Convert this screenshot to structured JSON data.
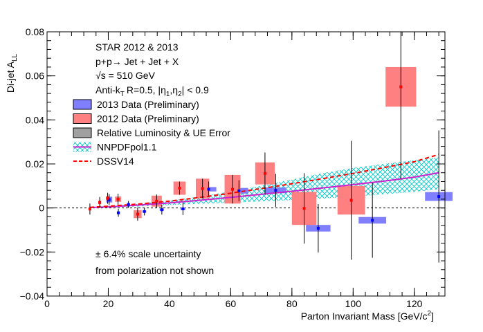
{
  "chart_data": {
    "type": "scatter",
    "xlabel": "Parton Invariant Mass [GeV/c",
    "xlabel_sup": "2",
    "xlabel_close": "]",
    "ylabel_main": "Di-jet A",
    "ylabel_sub": "LL",
    "xlim": [
      0,
      130
    ],
    "ylim": [
      -0.04,
      0.08
    ],
    "x_ticks": [
      0,
      20,
      40,
      60,
      80,
      100,
      120
    ],
    "x_tick_labels": [
      "0",
      "20",
      "40",
      "60",
      "80",
      "100",
      "120"
    ],
    "y_ticks": [
      -0.04,
      -0.02,
      0,
      0.02,
      0.04,
      0.06,
      0.08
    ],
    "y_tick_labels": [
      "−0.04",
      "−0.02",
      "0",
      "0.02",
      "0.04",
      "0.06",
      "0.08"
    ],
    "annotations": {
      "line1": "STAR 2012 & 2013",
      "line2": "p+p→ Jet + Jet + X",
      "line3_sqrt": "√",
      "line3": "s = 510 GeV",
      "line4_a": "Anti-k",
      "line4_sub": "T",
      "line4_b": "R=0.5, |η",
      "line4_sub1": "1",
      "line4_c": ",η",
      "line4_sub2": "2",
      "line4_d": "| < 0.9",
      "scale_note_1": "± 6.4% scale uncertainty",
      "scale_note_2": "from polarization not shown"
    },
    "legend": [
      {
        "key": "d2013",
        "label": "2013 Data (Preliminary)",
        "color": "#7f7fff"
      },
      {
        "key": "d2012",
        "label": "2012 Data (Preliminary)",
        "color": "#ff8080"
      },
      {
        "key": "lumi",
        "label": "Relative Luminosity & UE Error",
        "color": "#a0a0a0"
      },
      {
        "key": "nnpdf",
        "label": "NNPDFpol1.1",
        "color": "#00cccc"
      },
      {
        "key": "dssv",
        "label": "DSSV14",
        "color": "#ff0000"
      }
    ],
    "series": [
      {
        "name": "2013 Data (Preliminary)",
        "color": "#7f7fff",
        "marker": "#0000ff",
        "points": [
          {
            "x": 20.3,
            "y": 0.0038,
            "err": 0.0025,
            "sys": 0.0013,
            "hw": 1.0
          },
          {
            "x": 23.3,
            "y": -0.0022,
            "err": 0.0018,
            "sys": 0.0006,
            "hw": 0.5
          },
          {
            "x": 26.6,
            "y": 0.0016,
            "err": 0.0016,
            "sys": 0.0004,
            "hw": 0.5
          },
          {
            "x": 31.8,
            "y": -0.0016,
            "err": 0.0018,
            "sys": 0.0004,
            "hw": 0.6
          },
          {
            "x": 37.5,
            "y": -0.0008,
            "err": 0.0022,
            "sys": 0.0005,
            "hw": 0.7
          },
          {
            "x": 44.4,
            "y": -0.0004,
            "err": 0.0028,
            "sys": 0.0006,
            "hw": 0.8
          },
          {
            "x": 52.8,
            "y": 0.0085,
            "err": 0.0035,
            "sys": 0.001,
            "hw": 2.5
          },
          {
            "x": 62.7,
            "y": 0.0078,
            "err": 0.0048,
            "sys": 0.0013,
            "hw": 3.0
          },
          {
            "x": 74.7,
            "y": 0.008,
            "err": 0.0075,
            "sys": 0.0013,
            "hw": 3.5
          },
          {
            "x": 88.6,
            "y": -0.0092,
            "err": 0.011,
            "sys": 0.0015,
            "hw": 4.0
          },
          {
            "x": 106.3,
            "y": -0.0056,
            "err": 0.017,
            "sys": 0.0015,
            "hw": 4.5
          },
          {
            "x": 128.0,
            "y": 0.0052,
            "err": 0.03,
            "sys": 0.002,
            "hw": 4.5
          }
        ]
      },
      {
        "name": "2012 Data (Preliminary)",
        "color": "#ff8080",
        "marker": "#ff0000",
        "points": [
          {
            "x": 14.0,
            "y": -0.0005,
            "err": 0.0025,
            "sys": 0.0004,
            "hw": 0.4
          },
          {
            "x": 17.2,
            "y": 0.0025,
            "err": 0.0025,
            "sys": 0.0008,
            "hw": 0.5
          },
          {
            "x": 19.8,
            "y": 0.0044,
            "err": 0.0025,
            "sys": 0.001,
            "hw": 0.6
          },
          {
            "x": 23.2,
            "y": 0.004,
            "err": 0.0025,
            "sys": 0.0012,
            "hw": 1.0
          },
          {
            "x": 29.6,
            "y": -0.0028,
            "err": 0.003,
            "sys": 0.0018,
            "hw": 1.3
          },
          {
            "x": 35.8,
            "y": 0.0031,
            "err": 0.003,
            "sys": 0.0025,
            "hw": 1.7
          },
          {
            "x": 43.3,
            "y": 0.009,
            "err": 0.003,
            "sys": 0.003,
            "hw": 2.0
          },
          {
            "x": 50.8,
            "y": 0.0088,
            "err": 0.0045,
            "sys": 0.0045,
            "hw": 2.2
          },
          {
            "x": 60.6,
            "y": 0.0085,
            "err": 0.0065,
            "sys": 0.0065,
            "hw": 2.6
          },
          {
            "x": 71.2,
            "y": 0.0157,
            "err": 0.0095,
            "sys": 0.005,
            "hw": 3.2
          },
          {
            "x": 84.0,
            "y": -0.0002,
            "err": 0.016,
            "sys": 0.0075,
            "hw": 4.0
          },
          {
            "x": 99.4,
            "y": 0.0035,
            "err": 0.027,
            "sys": 0.0065,
            "hw": 4.5
          },
          {
            "x": 115.6,
            "y": 0.055,
            "err": 0.042,
            "sys": 0.009,
            "hw": 5.0
          }
        ]
      }
    ],
    "theory": {
      "nnpdf_x": [
        14,
        20,
        30,
        40,
        50,
        60,
        70,
        80,
        90,
        100,
        110,
        120,
        128
      ],
      "nnpdf_center": [
        0.0002,
        0.0005,
        0.0013,
        0.0023,
        0.0035,
        0.0048,
        0.0062,
        0.0076,
        0.0091,
        0.0106,
        0.0122,
        0.014,
        0.016
      ],
      "nnpdf_upper": [
        0.0004,
        0.0009,
        0.0019,
        0.0033,
        0.0052,
        0.0075,
        0.0101,
        0.0129,
        0.0158,
        0.0182,
        0.02,
        0.0217,
        0.023
      ],
      "nnpdf_lower": [
        0.0,
        0.0002,
        0.0007,
        0.0013,
        0.0019,
        0.0024,
        0.003,
        0.0036,
        0.0043,
        0.0052,
        0.0062,
        0.0073,
        0.0085
      ],
      "dssv_x": [
        14,
        20,
        30,
        40,
        50,
        60,
        70,
        80,
        90,
        100,
        110,
        120,
        128
      ],
      "dssv": [
        0.0003,
        0.0008,
        0.0018,
        0.0031,
        0.0048,
        0.0067,
        0.0088,
        0.011,
        0.0133,
        0.0157,
        0.0183,
        0.021,
        0.0243
      ]
    }
  }
}
